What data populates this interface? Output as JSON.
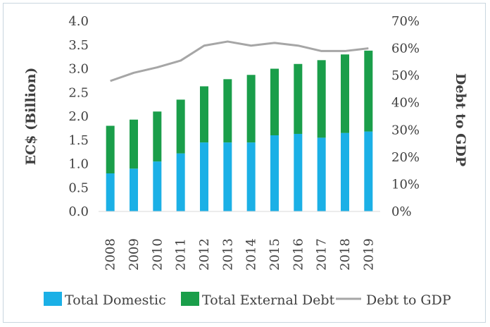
{
  "chart_data": {
    "type": "bar",
    "stacked": true,
    "categories": [
      "2008",
      "2009",
      "2010",
      "2011",
      "2012",
      "2013",
      "2014",
      "2015",
      "2016",
      "2017",
      "2018",
      "2019"
    ],
    "series": [
      {
        "name": "Total Domestic",
        "kind": "bar",
        "axis": "left",
        "color": "#1bb0e6",
        "values": [
          0.8,
          0.9,
          1.05,
          1.22,
          1.45,
          1.45,
          1.45,
          1.6,
          1.63,
          1.55,
          1.65,
          1.68
        ]
      },
      {
        "name": "Total External Debt",
        "kind": "bar",
        "axis": "left",
        "color": "#1a9e4a",
        "values": [
          1.0,
          1.03,
          1.05,
          1.13,
          1.18,
          1.33,
          1.42,
          1.4,
          1.47,
          1.63,
          1.65,
          1.7
        ]
      },
      {
        "name": "Debt to GDP",
        "kind": "line",
        "axis": "right",
        "color": "#a6a6a6",
        "values": [
          48,
          51,
          53,
          55.5,
          61,
          62.5,
          61,
          62,
          61,
          59,
          59,
          60
        ]
      }
    ],
    "ylabel": "EC$ (Billion)",
    "y2label": "Debt to GDP",
    "ylim": [
      0,
      4.0
    ],
    "y2lim": [
      0,
      70
    ],
    "yticks": [
      "0.0",
      "0.5",
      "1.0",
      "1.5",
      "2.0",
      "2.5",
      "3.0",
      "3.5",
      "4.0"
    ],
    "y2ticks": [
      "0%",
      "10%",
      "20%",
      "30%",
      "40%",
      "50%",
      "60%",
      "70%"
    ],
    "grid": false,
    "legend": "bottom"
  }
}
